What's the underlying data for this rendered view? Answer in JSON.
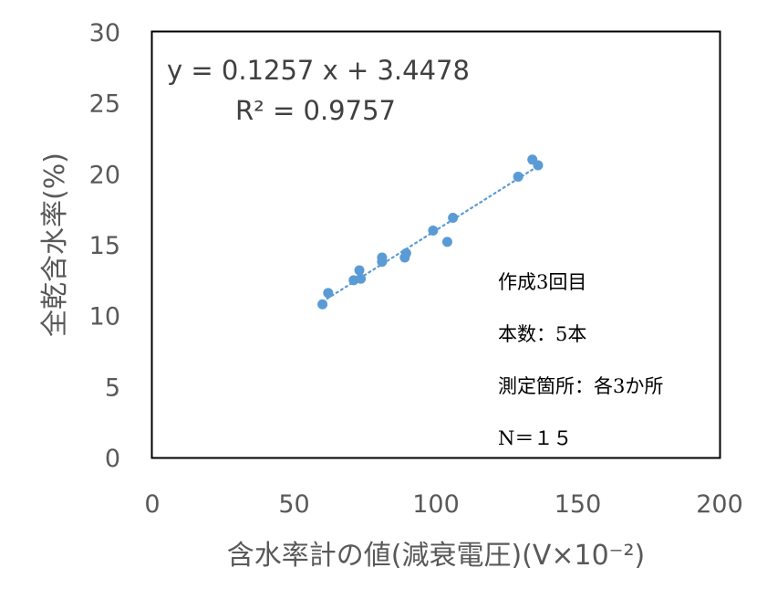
{
  "chart_data": {
    "type": "scatter",
    "xlabel": "含水率計の値(減衰電圧)(V×10⁻²)",
    "ylabel": "全乾含水率(%)",
    "xlim": [
      0,
      200
    ],
    "ylim": [
      0,
      30
    ],
    "x_ticks": [
      "0",
      "50",
      "100",
      "150",
      "200"
    ],
    "y_ticks": [
      "0",
      "5",
      "10",
      "15",
      "20",
      "25",
      "30"
    ],
    "grid": false,
    "points": [
      {
        "x": 60,
        "y": 10.8
      },
      {
        "x": 62,
        "y": 11.6
      },
      {
        "x": 71,
        "y": 12.5
      },
      {
        "x": 73,
        "y": 13.2
      },
      {
        "x": 73.5,
        "y": 12.6
      },
      {
        "x": 81,
        "y": 14.1
      },
      {
        "x": 81,
        "y": 13.8
      },
      {
        "x": 89,
        "y": 14.1
      },
      {
        "x": 89.5,
        "y": 14.4
      },
      {
        "x": 99,
        "y": 16.0
      },
      {
        "x": 104,
        "y": 15.2
      },
      {
        "x": 106,
        "y": 16.9
      },
      {
        "x": 129,
        "y": 19.8
      },
      {
        "x": 134,
        "y": 21.0
      },
      {
        "x": 136,
        "y": 20.6
      }
    ],
    "trendline": {
      "slope": 0.1257,
      "intercept": 3.4478,
      "x_range": [
        60,
        136
      ]
    },
    "equation": "y = 0.1257 x + 3.4478",
    "r_squared": "R² = 0.9757",
    "annotations": [
      "作成3回目",
      "本数：5本",
      "測定箇所：各3か所",
      "N＝１５"
    ],
    "colors": {
      "marker": "#5b9bd5",
      "trendline": "#5b9bd5",
      "frame": "#000000",
      "text": "#595959"
    }
  }
}
